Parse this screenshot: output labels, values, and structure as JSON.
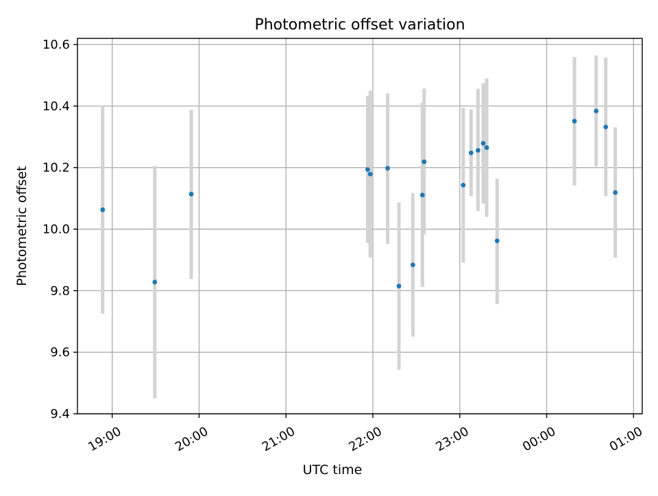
{
  "chart_data": {
    "type": "scatter",
    "title": "Photometric offset variation",
    "xlabel": "UTC time",
    "ylabel": "Photometric offset",
    "x_axis_type": "time",
    "x_ticks": [
      "19:00",
      "20:00",
      "21:00",
      "22:00",
      "23:00",
      "00:00",
      "01:00"
    ],
    "x_tick_positions_hours": [
      19,
      20,
      21,
      22,
      23,
      24,
      25
    ],
    "xlim_hours": [
      18.6,
      25.1
    ],
    "ylim": [
      9.4,
      10.62
    ],
    "y_ticks": [
      9.4,
      9.6,
      9.8,
      10.0,
      10.2,
      10.4,
      10.6
    ],
    "y_tick_labels": [
      "9.4",
      "9.6",
      "9.8",
      "10.0",
      "10.2",
      "10.4",
      "10.6"
    ],
    "grid": true,
    "colors": {
      "point": "#1f77b4",
      "errorbar": "#d3d3d3",
      "grid": "#b0b0b0"
    },
    "series": [
      {
        "points": [
          {
            "time": "18:53",
            "hour": 18.89,
            "value": 10.063,
            "low": 9.725,
            "high": 10.4
          },
          {
            "time": "19:29",
            "hour": 19.49,
            "value": 9.828,
            "low": 9.45,
            "high": 10.205
          },
          {
            "time": "19:55",
            "hour": 19.91,
            "value": 10.114,
            "low": 9.838,
            "high": 10.388
          },
          {
            "time": "21:56",
            "hour": 21.94,
            "value": 10.194,
            "low": 9.955,
            "high": 10.433
          },
          {
            "time": "21:58",
            "hour": 21.97,
            "value": 10.179,
            "low": 9.908,
            "high": 10.45
          },
          {
            "time": "22:10",
            "hour": 22.17,
            "value": 10.198,
            "low": 9.952,
            "high": 10.441
          },
          {
            "time": "22:18",
            "hour": 22.3,
            "value": 9.815,
            "low": 9.543,
            "high": 10.087
          },
          {
            "time": "22:27",
            "hour": 22.46,
            "value": 9.884,
            "low": 9.651,
            "high": 10.117
          },
          {
            "time": "22:34",
            "hour": 22.57,
            "value": 10.111,
            "low": 9.812,
            "high": 10.411
          },
          {
            "time": "22:35",
            "hour": 22.59,
            "value": 10.219,
            "low": 9.983,
            "high": 10.457
          },
          {
            "time": "23:02",
            "hour": 23.04,
            "value": 10.143,
            "low": 9.891,
            "high": 10.394
          },
          {
            "time": "23:08",
            "hour": 23.13,
            "value": 10.248,
            "low": 10.107,
            "high": 10.389
          },
          {
            "time": "23:12",
            "hour": 23.21,
            "value": 10.256,
            "low": 10.059,
            "high": 10.456
          },
          {
            "time": "23:16",
            "hour": 23.27,
            "value": 10.279,
            "low": 10.083,
            "high": 10.474
          },
          {
            "time": "23:18",
            "hour": 23.31,
            "value": 10.265,
            "low": 10.04,
            "high": 10.49
          },
          {
            "time": "23:26",
            "hour": 23.43,
            "value": 9.962,
            "low": 9.757,
            "high": 10.164
          },
          {
            "time": "00:19",
            "hour": 24.32,
            "value": 10.351,
            "low": 10.142,
            "high": 10.559
          },
          {
            "time": "00:34",
            "hour": 24.57,
            "value": 10.384,
            "low": 10.204,
            "high": 10.564
          },
          {
            "time": "00:41",
            "hour": 24.68,
            "value": 10.332,
            "low": 10.107,
            "high": 10.557
          },
          {
            "time": "00:47",
            "hour": 24.79,
            "value": 10.119,
            "low": 9.907,
            "high": 10.331
          }
        ]
      }
    ]
  }
}
